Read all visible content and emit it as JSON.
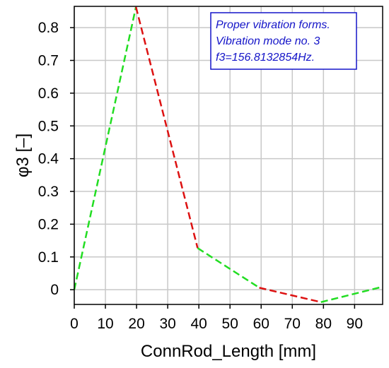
{
  "chart_data": {
    "type": "line",
    "title": "",
    "xlabel": "ConnRod_Length [mm]",
    "ylabel": "φ3 [–]",
    "xlim": [
      0,
      99
    ],
    "ylim": [
      -0.045,
      0.865
    ],
    "x_ticks": [
      0,
      10,
      20,
      30,
      40,
      50,
      60,
      70,
      80,
      90
    ],
    "x_tick_labels": [
      "0",
      "10",
      "20",
      "30",
      "40",
      "50",
      "60",
      "70",
      "80",
      "90"
    ],
    "y_ticks": [
      0,
      0.1,
      0.2,
      0.3,
      0.4,
      0.5,
      0.6,
      0.7,
      0.8
    ],
    "y_tick_labels": [
      "0",
      "0.1",
      "0.2",
      "0.3",
      "0.4",
      "0.5",
      "0.6",
      "0.7",
      "0.8"
    ],
    "grid": true,
    "line_style": "dashed",
    "segment_colors": [
      "#22dd22",
      "#dd1111",
      "#22dd22",
      "#dd1111",
      "#22dd22"
    ],
    "x": [
      0,
      19.8,
      39.6,
      59.4,
      79.2,
      99
    ],
    "y": [
      0,
      0.863,
      0.127,
      0.006,
      -0.038,
      0.009
    ],
    "annotation": {
      "lines": [
        "Proper vibration forms.",
        "Vibration mode no. 3",
        "f3=156.8132854Hz."
      ],
      "color": "#1414c8",
      "placement": "top-right"
    }
  }
}
